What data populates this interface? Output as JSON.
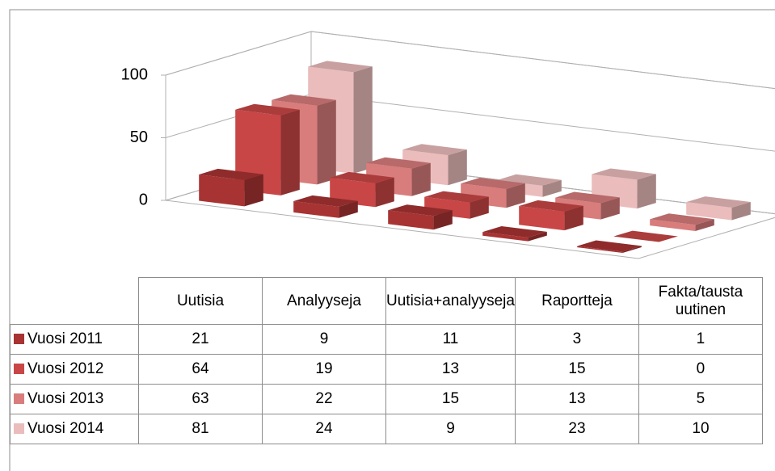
{
  "chart_data": {
    "type": "bar",
    "categories": [
      "Uutisia",
      "Analyyseja",
      "Uutisia+analyyseja",
      "Raportteja",
      "Fakta/tausta uutinen"
    ],
    "series": [
      {
        "name": "Vuosi 2011",
        "color": "#a83333",
        "values": [
          21,
          9,
          11,
          3,
          1
        ]
      },
      {
        "name": "Vuosi 2012",
        "color": "#c94646",
        "values": [
          64,
          19,
          13,
          15,
          0
        ]
      },
      {
        "name": "Vuosi 2013",
        "color": "#d97c7c",
        "values": [
          63,
          22,
          15,
          13,
          5
        ]
      },
      {
        "name": "Vuosi 2014",
        "color": "#ebbcbc",
        "values": [
          81,
          24,
          9,
          23,
          10
        ]
      }
    ],
    "ylim": [
      0,
      100
    ],
    "yticks": [
      0,
      50,
      100
    ],
    "grid": true
  }
}
